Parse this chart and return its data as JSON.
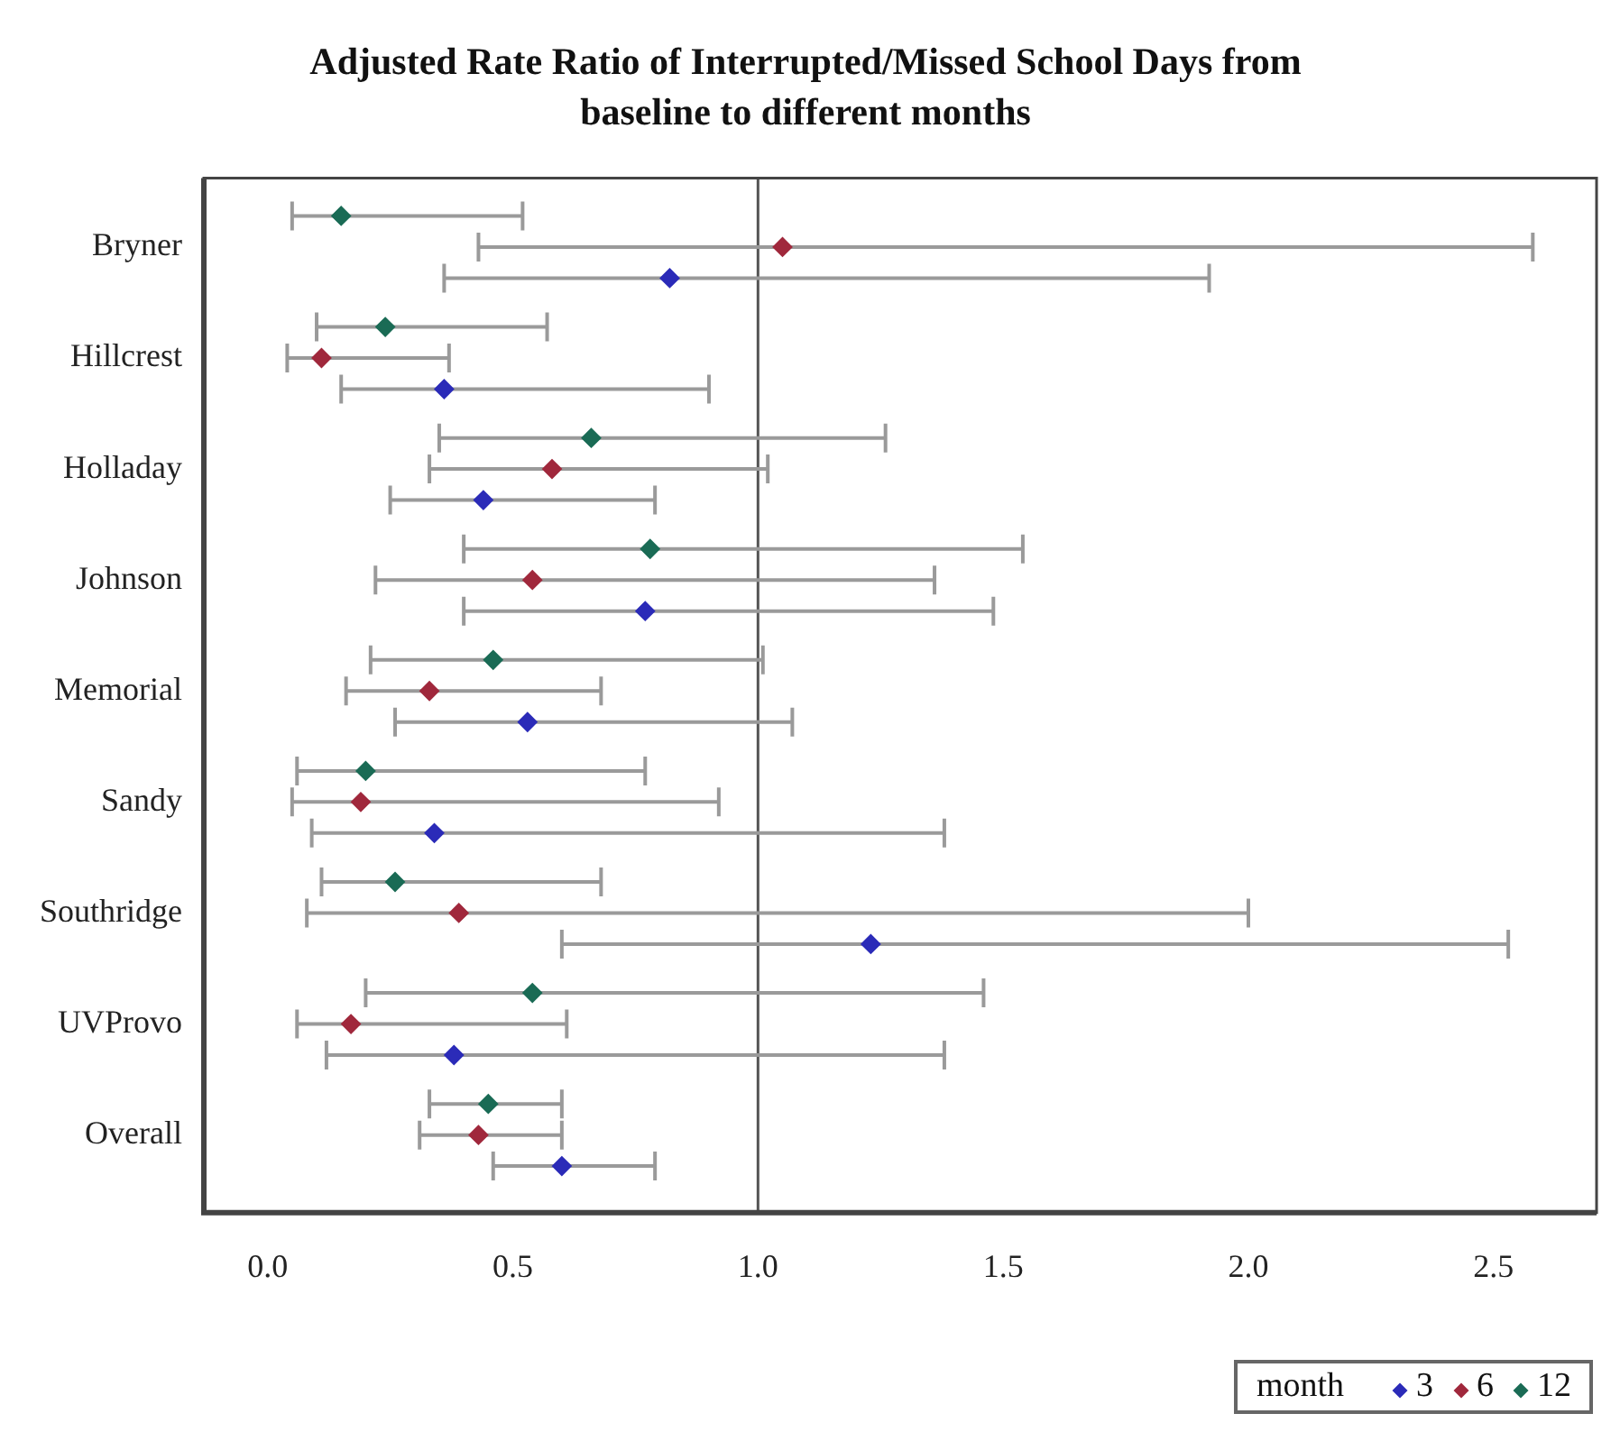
{
  "chart_data": {
    "type": "scatter",
    "orientation": "horizontal",
    "title": "Adjusted Rate Ratio of Interrupted/Missed School Days from baseline to different months",
    "categories": [
      "Bryner",
      "Hillcrest",
      "Holladay",
      "Johnson",
      "Memorial",
      "Sandy",
      "Southridge",
      "UVProvo",
      "Overall"
    ],
    "legend_title": "month",
    "legend": "bottom right",
    "marker": "diamond",
    "grid": false,
    "xlim": [
      -0.13,
      2.71
    ],
    "xticks": [
      {
        "value": 0,
        "label": "0.0"
      },
      0.5,
      {
        "value": 1,
        "label": "1.0"
      },
      1.5,
      {
        "value": 2,
        "label": "2.0"
      },
      2.5
    ],
    "ref_lines": [
      {
        "axis": "x",
        "value": 1,
        "color": "#555555"
      }
    ],
    "series": [
      {
        "name": "3",
        "color": "#2b2bb8",
        "values": [
          0.82,
          0.36,
          0.44,
          0.77,
          0.53,
          0.34,
          1.23,
          0.38,
          0.6
        ],
        "errors": [
          [
            0.36,
            1.92
          ],
          [
            0.15,
            0.9
          ],
          [
            0.25,
            0.79
          ],
          [
            0.4,
            1.48
          ],
          [
            0.26,
            1.07
          ],
          [
            0.09,
            1.38
          ],
          [
            0.6,
            2.53
          ],
          [
            0.12,
            1.38
          ],
          [
            0.46,
            0.79
          ]
        ]
      },
      {
        "name": "6",
        "color": "#a0283c",
        "values": [
          1.05,
          0.11,
          0.58,
          0.54,
          0.33,
          0.19,
          0.39,
          0.17,
          0.43
        ],
        "errors": [
          [
            0.43,
            2.58
          ],
          [
            0.04,
            0.37
          ],
          [
            0.33,
            1.02
          ],
          [
            0.22,
            1.36
          ],
          [
            0.16,
            0.68
          ],
          [
            0.05,
            0.92
          ],
          [
            0.08,
            2.0
          ],
          [
            0.06,
            0.61
          ],
          [
            0.31,
            0.6
          ]
        ]
      },
      {
        "name": "12",
        "color": "#1a6b55",
        "values": [
          0.15,
          0.24,
          0.66,
          0.78,
          0.46,
          0.2,
          0.26,
          0.54,
          0.45
        ],
        "errors": [
          [
            0.05,
            0.52
          ],
          [
            0.1,
            0.57
          ],
          [
            0.35,
            1.26
          ],
          [
            0.4,
            1.54
          ],
          [
            0.21,
            1.01
          ],
          [
            0.06,
            0.77
          ],
          [
            0.11,
            0.68
          ],
          [
            0.2,
            1.46
          ],
          [
            0.33,
            0.6
          ]
        ]
      }
    ]
  }
}
